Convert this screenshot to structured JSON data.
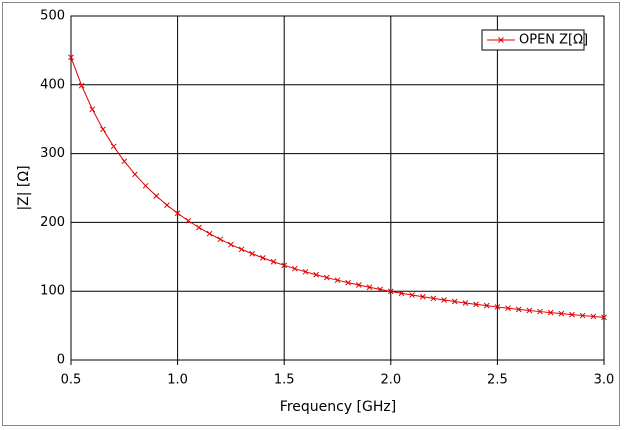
{
  "chart_data": {
    "type": "line",
    "x_label": "Frequency [GHz]",
    "y_label": "|Z| [Ω]",
    "x": [
      0.5,
      0.55,
      0.6,
      0.65,
      0.7,
      0.75,
      0.8,
      0.85,
      0.9,
      0.95,
      1.0,
      1.05,
      1.1,
      1.15,
      1.2,
      1.25,
      1.3,
      1.35,
      1.4,
      1.45,
      1.5,
      1.55,
      1.6,
      1.65,
      1.7,
      1.75,
      1.8,
      1.85,
      1.9,
      1.95,
      2.0,
      2.05,
      2.1,
      2.15,
      2.2,
      2.25,
      2.3,
      2.35,
      2.4,
      2.45,
      2.5,
      2.55,
      2.6,
      2.65,
      2.7,
      2.75,
      2.8,
      2.85,
      2.9,
      2.95,
      3.0
    ],
    "series": [
      {
        "name": "OPEN Z[Ω]",
        "color": "#e00000",
        "values": [
          440.0,
          398.8,
          364.4,
          335.3,
          310.4,
          288.8,
          269.9,
          253.2,
          238.4,
          225.1,
          213.2,
          202.4,
          192.6,
          183.6,
          175.4,
          167.8,
          160.9,
          154.4,
          148.4,
          142.8,
          137.6,
          132.7,
          128.2,
          123.9,
          119.8,
          116.0,
          112.4,
          109.0,
          105.8,
          102.7,
          99.8,
          97.0,
          94.4,
          91.9,
          89.5,
          87.2,
          85.0,
          82.9,
          80.9,
          79.0,
          77.1,
          75.3,
          73.6,
          72.0,
          70.4,
          68.9,
          67.4,
          66.0,
          64.6,
          63.3,
          62.0
        ]
      }
    ],
    "xlim": [
      0.5,
      3.0
    ],
    "ylim": [
      0,
      500
    ],
    "xticks": [
      0.5,
      {
        "value": 1.0,
        "label": "1.0"
      },
      1.5,
      {
        "value": 2.0,
        "label": "2.0"
      },
      2.5,
      {
        "value": 3.0,
        "label": "3.0"
      }
    ],
    "yticks": [
      0,
      100,
      200,
      300,
      400,
      500
    ],
    "grid": true,
    "legend": "top-right"
  }
}
